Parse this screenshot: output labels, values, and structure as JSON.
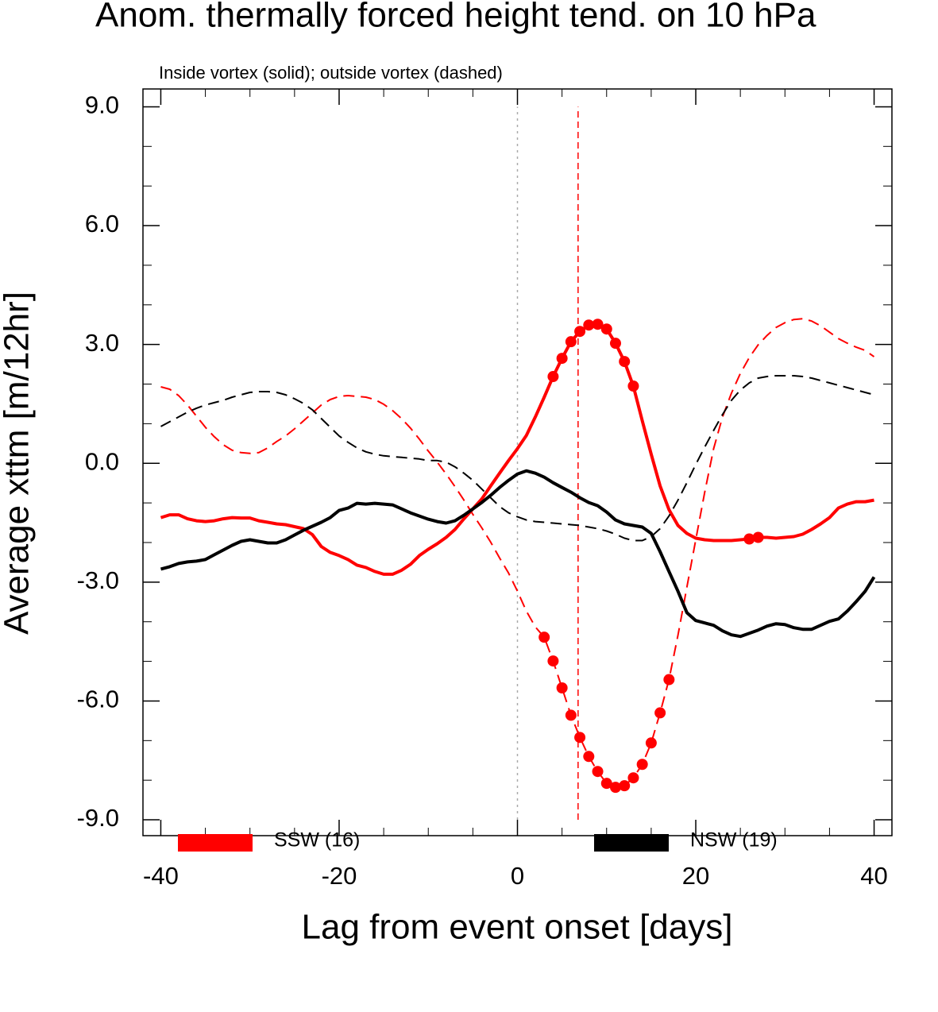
{
  "chart_data": {
    "type": "line",
    "title": "Anom. thermally forced height tend. on 10 hPa",
    "subtitle": "Inside vortex (solid); outside vortex (dashed)",
    "xlabel": "Lag from event onset [days]",
    "ylabel": "Average xttm [m/12hr]",
    "xlim": [
      -42,
      42
    ],
    "ylim": [
      -9.4,
      9.45
    ],
    "xticks": [
      -40,
      -20,
      0,
      20,
      40
    ],
    "xminor_ticks": [
      -35,
      -30,
      -25,
      -15,
      -10,
      -5,
      5,
      10,
      15,
      25,
      30,
      35
    ],
    "yticks": [
      {
        "value": -9,
        "label": "-9.0"
      },
      {
        "value": -6,
        "label": "-6.0"
      },
      {
        "value": -3,
        "label": "-3.0"
      },
      {
        "value": 0,
        "label": "0.0"
      },
      {
        "value": 3,
        "label": "3.0"
      },
      {
        "value": 6,
        "label": "6.0"
      },
      {
        "value": 9,
        "label": "9.0"
      }
    ],
    "yminor_ticks": [
      -8,
      -7,
      -5,
      -4,
      -2,
      -1,
      1,
      2,
      4,
      5,
      7,
      8
    ],
    "grid": false,
    "legend": "bottom",
    "vlines": [
      {
        "x": 0,
        "color": "#aaaaaa"
      },
      {
        "x": 6.8,
        "color": "#ff0000"
      }
    ],
    "x": [
      -40,
      -39,
      -38,
      -37,
      -36,
      -35,
      -34,
      -33,
      -32,
      -31,
      -30,
      -29,
      -28,
      -27,
      -26,
      -25,
      -24,
      -23,
      -22,
      -21,
      -20,
      -19,
      -18,
      -17,
      -16,
      -15,
      -14,
      -13,
      -12,
      -11,
      -10,
      -9,
      -8,
      -7,
      -6,
      -5,
      -4,
      -3,
      -2,
      -1,
      0,
      1,
      2,
      3,
      4,
      5,
      6,
      7,
      8,
      9,
      10,
      11,
      12,
      13,
      14,
      15,
      16,
      17,
      18,
      19,
      20,
      21,
      22,
      23,
      24,
      25,
      26,
      27,
      28,
      29,
      30,
      31,
      32,
      33,
      34,
      35,
      36,
      37,
      38,
      39,
      40
    ],
    "series": [
      {
        "name": "SSW (16)",
        "color": "#ff0000",
        "inside": [
          -1.37,
          -1.3,
          -1.3,
          -1.4,
          -1.45,
          -1.47,
          -1.45,
          -1.4,
          -1.37,
          -1.38,
          -1.38,
          -1.45,
          -1.49,
          -1.53,
          -1.55,
          -1.6,
          -1.65,
          -1.8,
          -2.1,
          -2.25,
          -2.33,
          -2.43,
          -2.57,
          -2.63,
          -2.73,
          -2.8,
          -2.8,
          -2.7,
          -2.55,
          -2.33,
          -2.17,
          -2.03,
          -1.87,
          -1.67,
          -1.4,
          -1.15,
          -0.9,
          -0.57,
          -0.25,
          0.07,
          0.37,
          0.7,
          1.17,
          1.67,
          2.19,
          2.65,
          3.07,
          3.33,
          3.49,
          3.51,
          3.39,
          3.03,
          2.57,
          1.95,
          1.07,
          0.23,
          -0.57,
          -1.17,
          -1.57,
          -1.77,
          -1.89,
          -1.93,
          -1.95,
          -1.95,
          -1.95,
          -1.93,
          -1.91,
          -1.87,
          -1.87,
          -1.89,
          -1.87,
          -1.85,
          -1.79,
          -1.67,
          -1.53,
          -1.37,
          -1.13,
          -1.03,
          -0.97,
          -0.97,
          -0.93
        ],
        "outside": [
          1.93,
          1.87,
          1.71,
          1.47,
          1.19,
          0.91,
          0.67,
          0.47,
          0.33,
          0.27,
          0.25,
          0.27,
          0.39,
          0.55,
          0.69,
          0.87,
          1.07,
          1.27,
          1.47,
          1.61,
          1.69,
          1.71,
          1.69,
          1.67,
          1.61,
          1.49,
          1.33,
          1.13,
          0.89,
          0.61,
          0.31,
          0.03,
          -0.27,
          -0.59,
          -0.93,
          -1.29,
          -1.63,
          -1.99,
          -2.39,
          -2.77,
          -3.23,
          -3.73,
          -4.13,
          -4.39,
          -4.99,
          -5.67,
          -6.36,
          -6.92,
          -7.4,
          -7.78,
          -8.08,
          -8.18,
          -8.14,
          -7.94,
          -7.6,
          -7.06,
          -6.3,
          -5.46,
          -4.34,
          -3.13,
          -1.93,
          -0.73,
          0.37,
          1.17,
          1.77,
          2.27,
          2.67,
          2.99,
          3.23,
          3.43,
          3.55,
          3.63,
          3.65,
          3.59,
          3.47,
          3.31,
          3.15,
          3.03,
          2.93,
          2.85,
          2.69
        ],
        "inside_significant": [
          4,
          5,
          6,
          7,
          8,
          9,
          10,
          11,
          12,
          13,
          26,
          27
        ],
        "outside_significant": [
          3,
          4,
          5,
          6,
          7,
          8,
          9,
          10,
          11,
          12,
          13,
          14,
          15,
          16,
          17
        ]
      },
      {
        "name": "NSW (19)",
        "color": "#000000",
        "inside": [
          -2.67,
          -2.61,
          -2.53,
          -2.49,
          -2.47,
          -2.43,
          -2.31,
          -2.19,
          -2.07,
          -1.97,
          -1.93,
          -1.97,
          -2.01,
          -2.01,
          -1.93,
          -1.81,
          -1.69,
          -1.59,
          -1.49,
          -1.37,
          -1.19,
          -1.13,
          -1.01,
          -1.03,
          -1.01,
          -1.03,
          -1.05,
          -1.15,
          -1.25,
          -1.33,
          -1.41,
          -1.47,
          -1.51,
          -1.45,
          -1.31,
          -1.15,
          -0.99,
          -0.81,
          -0.61,
          -0.43,
          -0.27,
          -0.19,
          -0.25,
          -0.35,
          -0.49,
          -0.61,
          -0.73,
          -0.87,
          -0.99,
          -1.07,
          -1.23,
          -1.43,
          -1.53,
          -1.57,
          -1.61,
          -1.77,
          -2.23,
          -2.73,
          -3.23,
          -3.77,
          -3.97,
          -4.03,
          -4.09,
          -4.23,
          -4.33,
          -4.37,
          -4.29,
          -4.21,
          -4.11,
          -4.05,
          -4.07,
          -4.15,
          -4.19,
          -4.19,
          -4.09,
          -3.99,
          -3.93,
          -3.73,
          -3.49,
          -3.23,
          -2.87
        ],
        "outside": [
          0.93,
          1.05,
          1.17,
          1.29,
          1.39,
          1.47,
          1.53,
          1.59,
          1.67,
          1.73,
          1.79,
          1.81,
          1.81,
          1.79,
          1.73,
          1.63,
          1.51,
          1.35,
          1.13,
          0.91,
          0.69,
          0.53,
          0.39,
          0.29,
          0.23,
          0.19,
          0.17,
          0.15,
          0.13,
          0.11,
          0.07,
          0.07,
          0.03,
          -0.09,
          -0.25,
          -0.43,
          -0.65,
          -0.87,
          -1.09,
          -1.25,
          -1.35,
          -1.43,
          -1.47,
          -1.49,
          -1.51,
          -1.53,
          -1.55,
          -1.57,
          -1.61,
          -1.65,
          -1.71,
          -1.79,
          -1.89,
          -1.95,
          -1.95,
          -1.85,
          -1.65,
          -1.33,
          -0.93,
          -0.49,
          -0.03,
          0.41,
          0.83,
          1.23,
          1.59,
          1.85,
          2.03,
          2.15,
          2.19,
          2.21,
          2.21,
          2.21,
          2.19,
          2.15,
          2.09,
          2.03,
          1.97,
          1.91,
          1.85,
          1.79,
          1.73
        ]
      }
    ]
  }
}
